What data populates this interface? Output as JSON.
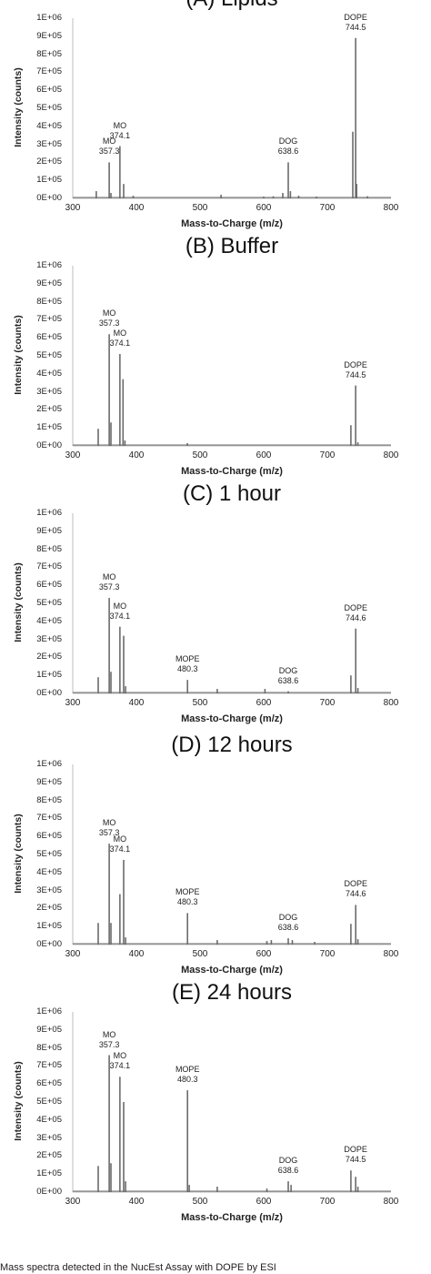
{
  "caption": "Mass spectra detected in the NucEst Assay with DOPE by ESI",
  "chart_data": [
    {
      "type": "line",
      "title": "(A) Lipids",
      "xlabel": "Mass-to-Charge (m/z)",
      "ylabel": "Intensity (counts)",
      "xlim": [
        300,
        800
      ],
      "ylim": [
        0,
        1000000
      ],
      "xticks": [
        "300",
        "400",
        "500",
        "600",
        "700",
        "800"
      ],
      "yticks": [
        "0E+00",
        "1E+05",
        "2E+05",
        "3E+05",
        "4E+05",
        "5E+05",
        "6E+05",
        "7E+05",
        "8E+05",
        "9E+05",
        "1E+06"
      ],
      "grid": false,
      "series_color": "#6b6b6b",
      "peaks": [
        {
          "x": 337,
          "y": 40000
        },
        {
          "x": 357.3,
          "y": 200000
        },
        {
          "x": 360,
          "y": 30000
        },
        {
          "x": 374.1,
          "y": 290000
        },
        {
          "x": 380,
          "y": 80000
        },
        {
          "x": 395,
          "y": 15000
        },
        {
          "x": 533,
          "y": 20000
        },
        {
          "x": 600,
          "y": 10000
        },
        {
          "x": 615,
          "y": 12000
        },
        {
          "x": 630,
          "y": 30000
        },
        {
          "x": 638.6,
          "y": 200000
        },
        {
          "x": 642,
          "y": 40000
        },
        {
          "x": 655,
          "y": 15000
        },
        {
          "x": 683,
          "y": 10000
        },
        {
          "x": 740,
          "y": 370000
        },
        {
          "x": 744.5,
          "y": 890000
        },
        {
          "x": 746,
          "y": 80000
        },
        {
          "x": 763,
          "y": 12000
        }
      ],
      "annotations": [
        {
          "text": [
            "MO",
            "357.3"
          ],
          "x": 357.3,
          "y": 200000
        },
        {
          "text": [
            "MO",
            "374.1"
          ],
          "x": 374.1,
          "y": 290000
        },
        {
          "text": [
            "DOG",
            "638.6"
          ],
          "x": 638.6,
          "y": 200000
        },
        {
          "text": [
            "DOPE",
            "744.5"
          ],
          "x": 744.5,
          "y": 890000
        }
      ]
    },
    {
      "type": "line",
      "title": "(B) Buffer",
      "xlabel": "Mass-to-Charge (m/z)",
      "ylabel": "Intensity (counts)",
      "xlim": [
        300,
        800
      ],
      "ylim": [
        0,
        1000000
      ],
      "xticks": [
        "300",
        "400",
        "500",
        "600",
        "700",
        "800"
      ],
      "yticks": [
        "0E+00",
        "1E+05",
        "2E+05",
        "3E+05",
        "4E+05",
        "5E+05",
        "6E+05",
        "7E+05",
        "8E+05",
        "9E+05",
        "1E+06"
      ],
      "grid": false,
      "series_color": "#6b6b6b",
      "peaks": [
        {
          "x": 340,
          "y": 95000
        },
        {
          "x": 357.3,
          "y": 620000
        },
        {
          "x": 360,
          "y": 130000
        },
        {
          "x": 374.1,
          "y": 510000
        },
        {
          "x": 379,
          "y": 370000
        },
        {
          "x": 382,
          "y": 30000
        },
        {
          "x": 480,
          "y": 15000
        },
        {
          "x": 737,
          "y": 115000
        },
        {
          "x": 744.5,
          "y": 335000
        },
        {
          "x": 748,
          "y": 20000
        }
      ],
      "annotations": [
        {
          "text": [
            "MO",
            "357.3"
          ],
          "x": 357.3,
          "y": 620000
        },
        {
          "text": [
            "MO",
            "374.1"
          ],
          "x": 374.1,
          "y": 510000
        },
        {
          "text": [
            "DOPE",
            "744.5"
          ],
          "x": 744.5,
          "y": 335000
        }
      ]
    },
    {
      "type": "line",
      "title": "(C) 1 hour",
      "xlabel": "Mass-to-Charge (m/z)",
      "ylabel": "Intensity (counts)",
      "xlim": [
        300,
        800
      ],
      "ylim": [
        0,
        1000000
      ],
      "xticks": [
        "300",
        "400",
        "500",
        "600",
        "700",
        "800"
      ],
      "yticks": [
        "0E+00",
        "1E+05",
        "2E+05",
        "3E+05",
        "4E+05",
        "5E+05",
        "6E+05",
        "7E+05",
        "8E+05",
        "9E+05",
        "1E+06"
      ],
      "grid": false,
      "series_color": "#6b6b6b",
      "peaks": [
        {
          "x": 340,
          "y": 90000
        },
        {
          "x": 357.3,
          "y": 530000
        },
        {
          "x": 360,
          "y": 120000
        },
        {
          "x": 374.1,
          "y": 370000
        },
        {
          "x": 380,
          "y": 320000
        },
        {
          "x": 383,
          "y": 40000
        },
        {
          "x": 480.3,
          "y": 75000
        },
        {
          "x": 527,
          "y": 25000
        },
        {
          "x": 602,
          "y": 25000
        },
        {
          "x": 638.6,
          "y": 12000
        },
        {
          "x": 737,
          "y": 100000
        },
        {
          "x": 744.6,
          "y": 360000
        },
        {
          "x": 748,
          "y": 30000
        }
      ],
      "annotations": [
        {
          "text": [
            "MO",
            "357.3"
          ],
          "x": 357.3,
          "y": 530000
        },
        {
          "text": [
            "MO",
            "374.1"
          ],
          "x": 374.1,
          "y": 370000
        },
        {
          "text": [
            "MOPE",
            "480.3"
          ],
          "x": 480.3,
          "y": 75000
        },
        {
          "text": [
            "DOG",
            "638.6"
          ],
          "x": 638.6,
          "y": 12000
        },
        {
          "text": [
            "DOPE",
            "744.6"
          ],
          "x": 744.6,
          "y": 360000
        }
      ]
    },
    {
      "type": "line",
      "title": "(D) 12 hours",
      "xlabel": "Mass-to-Charge (m/z)",
      "ylabel": "Intensity (counts)",
      "xlim": [
        300,
        800
      ],
      "ylim": [
        0,
        1000000
      ],
      "xticks": [
        "300",
        "400",
        "500",
        "600",
        "700",
        "800"
      ],
      "yticks": [
        "0E+00",
        "1E+05",
        "2E+05",
        "3E+05",
        "4E+05",
        "5E+05",
        "6E+05",
        "7E+05",
        "8E+05",
        "9E+05",
        "1E+06"
      ],
      "grid": false,
      "series_color": "#6b6b6b",
      "peaks": [
        {
          "x": 340,
          "y": 120000
        },
        {
          "x": 357.3,
          "y": 560000
        },
        {
          "x": 360,
          "y": 120000
        },
        {
          "x": 374.1,
          "y": 280000
        },
        {
          "x": 380,
          "y": 470000
        },
        {
          "x": 383,
          "y": 40000
        },
        {
          "x": 480.3,
          "y": 175000
        },
        {
          "x": 527,
          "y": 25000
        },
        {
          "x": 605,
          "y": 20000
        },
        {
          "x": 612,
          "y": 25000
        },
        {
          "x": 638.6,
          "y": 35000
        },
        {
          "x": 645,
          "y": 25000
        },
        {
          "x": 680,
          "y": 15000
        },
        {
          "x": 737,
          "y": 115000
        },
        {
          "x": 744.6,
          "y": 220000
        },
        {
          "x": 748,
          "y": 30000
        }
      ],
      "annotations": [
        {
          "text": [
            "MO",
            "357.3"
          ],
          "x": 357.3,
          "y": 560000
        },
        {
          "text": [
            "MO",
            "374.1"
          ],
          "x": 374.1,
          "y": 470000
        },
        {
          "text": [
            "MOPE",
            "480.3"
          ],
          "x": 480.3,
          "y": 175000
        },
        {
          "text": [
            "DOG",
            "638.6"
          ],
          "x": 638.6,
          "y": 35000
        },
        {
          "text": [
            "DOPE",
            "744.6"
          ],
          "x": 744.6,
          "y": 220000
        }
      ]
    },
    {
      "type": "line",
      "title": "(E) 24 hours",
      "xlabel": "Mass-to-Charge (m/z)",
      "ylabel": "Intensity (counts)",
      "xlim": [
        300,
        800
      ],
      "ylim": [
        0,
        1000000
      ],
      "xticks": [
        "300",
        "400",
        "500",
        "600",
        "700",
        "800"
      ],
      "yticks": [
        "0E+00",
        "1E+05",
        "2E+05",
        "3E+05",
        "4E+05",
        "5E+05",
        "6E+05",
        "7E+05",
        "8E+05",
        "9E+05",
        "1E+06"
      ],
      "grid": false,
      "series_color": "#6b6b6b",
      "peaks": [
        {
          "x": 340,
          "y": 145000
        },
        {
          "x": 357.3,
          "y": 760000
        },
        {
          "x": 360,
          "y": 160000
        },
        {
          "x": 374.1,
          "y": 640000
        },
        {
          "x": 380,
          "y": 500000
        },
        {
          "x": 383,
          "y": 60000
        },
        {
          "x": 480.3,
          "y": 565000
        },
        {
          "x": 483,
          "y": 40000
        },
        {
          "x": 527,
          "y": 30000
        },
        {
          "x": 605,
          "y": 20000
        },
        {
          "x": 638.6,
          "y": 60000
        },
        {
          "x": 643,
          "y": 40000
        },
        {
          "x": 737,
          "y": 120000
        },
        {
          "x": 744.5,
          "y": 85000
        },
        {
          "x": 748,
          "y": 30000
        }
      ],
      "annotations": [
        {
          "text": [
            "MO",
            "357.3"
          ],
          "x": 357.3,
          "y": 760000
        },
        {
          "text": [
            "MO",
            "374.1"
          ],
          "x": 374.1,
          "y": 640000
        },
        {
          "text": [
            "MOPE",
            "480.3"
          ],
          "x": 480.3,
          "y": 565000
        },
        {
          "text": [
            "DOG",
            "638.6"
          ],
          "x": 638.6,
          "y": 60000
        },
        {
          "text": [
            "DOPE",
            "744.5"
          ],
          "x": 744.5,
          "y": 120000
        }
      ]
    }
  ]
}
